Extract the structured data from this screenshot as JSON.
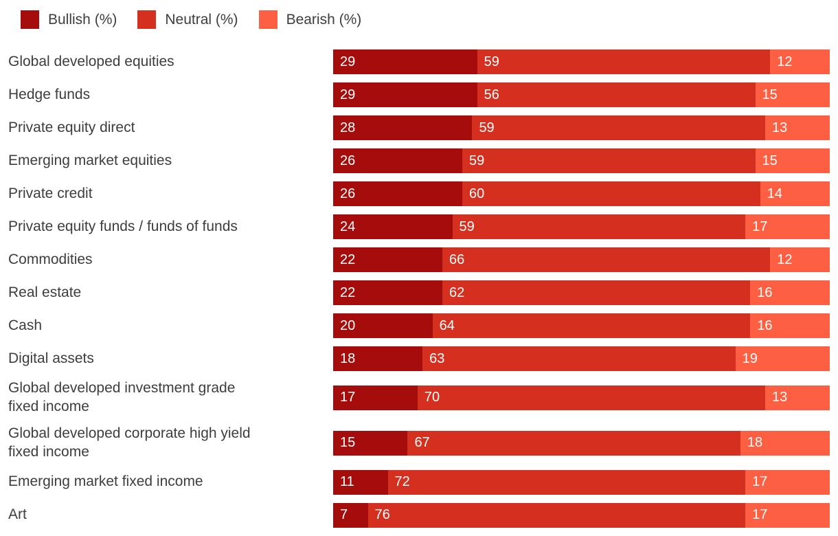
{
  "legend": {
    "items": [
      {
        "key": "bullish",
        "label": "Bullish (%)",
        "color": "#A50D0D"
      },
      {
        "key": "neutral",
        "label": "Neutral (%)",
        "color": "#D5301F"
      },
      {
        "key": "bearish",
        "label": "Bearish (%)",
        "color": "#FC5F42"
      }
    ]
  },
  "chart_data": {
    "type": "bar",
    "orientation": "horizontal",
    "stacked": true,
    "unit": "%",
    "xlim": [
      0,
      100
    ],
    "grid": false,
    "legend_position": "top-left",
    "value_labels": "inside-left",
    "label_text_color": "#3d3d3d",
    "value_label_color": "#ffffff",
    "categories": [
      "Global developed equities",
      "Hedge funds",
      "Private equity direct",
      "Emerging market equities",
      "Private credit",
      "Private equity funds / funds of funds",
      "Commodities",
      "Real estate",
      "Cash",
      "Digital assets",
      "Global developed investment grade\nfixed income",
      "Global developed corporate high yield\nfixed income",
      "Emerging market fixed income",
      "Art"
    ],
    "series": [
      {
        "name": "Bullish (%)",
        "key": "bullish",
        "color": "#A50D0D",
        "values": [
          29,
          29,
          28,
          26,
          26,
          24,
          22,
          22,
          20,
          18,
          17,
          15,
          11,
          7
        ]
      },
      {
        "name": "Neutral (%)",
        "key": "neutral",
        "color": "#D5301F",
        "values": [
          59,
          56,
          59,
          59,
          60,
          59,
          66,
          62,
          64,
          63,
          70,
          67,
          72,
          76
        ]
      },
      {
        "name": "Bearish (%)",
        "key": "bearish",
        "color": "#FC5F42",
        "values": [
          12,
          15,
          13,
          15,
          14,
          17,
          12,
          16,
          16,
          19,
          13,
          18,
          17,
          17
        ]
      }
    ]
  }
}
